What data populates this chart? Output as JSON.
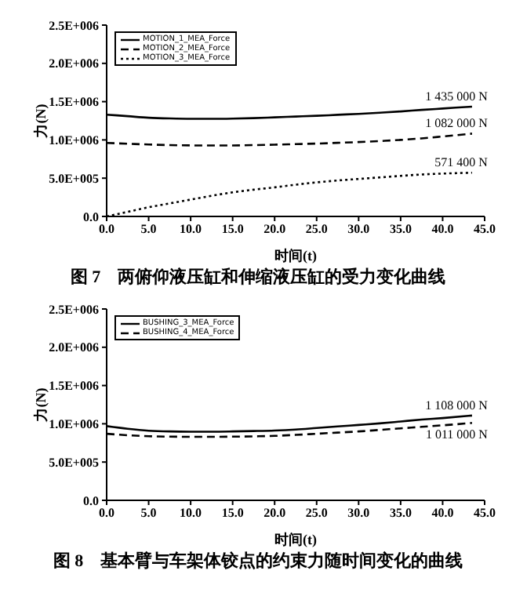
{
  "chart_data": [
    {
      "type": "line",
      "title": "图 7　两俯仰液压缸和伸缩液压缸的受力变化曲线",
      "xlabel": "时间(t)",
      "ylabel": "力(N)",
      "x": [
        0,
        2.5,
        5,
        7.5,
        10,
        12.5,
        15,
        17.5,
        20,
        22.5,
        25,
        27.5,
        30,
        32.5,
        35,
        37.5,
        40,
        43.5
      ],
      "series": [
        {
          "name": "MOTION_1_MEA_Force",
          "color": "#000000",
          "line_style": "solid",
          "values": [
            1330000,
            1310000,
            1290000,
            1280000,
            1275000,
            1275000,
            1278000,
            1285000,
            1295000,
            1305000,
            1315000,
            1328000,
            1340000,
            1355000,
            1372000,
            1392000,
            1410000,
            1435000
          ]
        },
        {
          "name": "MOTION_2_MEA_Force",
          "color": "#000000",
          "line_style": "dashed",
          "values": [
            960000,
            950000,
            940000,
            932000,
            928000,
            927000,
            928000,
            932000,
            938000,
            945000,
            952000,
            962000,
            972000,
            985000,
            1000000,
            1020000,
            1045000,
            1082000
          ]
        },
        {
          "name": "MOTION_3_MEA_Force",
          "color": "#000000",
          "line_style": "dotted",
          "values": [
            0,
            60000,
            120000,
            170000,
            220000,
            270000,
            315000,
            350000,
            380000,
            415000,
            445000,
            470000,
            490000,
            510000,
            530000,
            548000,
            560000,
            571400
          ]
        }
      ],
      "xlim": [
        0,
        45
      ],
      "xticks": [
        {
          "value": 0,
          "label": "0.0"
        },
        {
          "value": 5,
          "label": "5.0"
        },
        {
          "value": 10,
          "label": "10.0"
        },
        {
          "value": 15,
          "label": "15.0"
        },
        {
          "value": 20,
          "label": "20.0"
        },
        {
          "value": 25,
          "label": "25.0"
        },
        {
          "value": 30,
          "label": "30.0"
        },
        {
          "value": 35,
          "label": "35.0"
        },
        {
          "value": 40,
          "label": "40.0"
        },
        {
          "value": 45,
          "label": "45.0"
        }
      ],
      "ylim": [
        0,
        2500000
      ],
      "yticks": [
        {
          "value": 0,
          "label": "0.0"
        },
        {
          "value": 500000,
          "label": "5.0E+005"
        },
        {
          "value": 1000000,
          "label": "1.0E+006"
        },
        {
          "value": 1500000,
          "label": "1.5E+006"
        },
        {
          "value": 2000000,
          "label": "2.0E+006"
        },
        {
          "value": 2500000,
          "label": "2.5E+006"
        }
      ],
      "annotations": [
        "1 435 000 N",
        "1 082 000 N",
        "571 400 N"
      ],
      "grid": false,
      "legend": "top left",
      "marker": "none"
    },
    {
      "type": "line",
      "title": "图 8　基本臂与车架体铰点的约束力随时间变化的曲线",
      "xlabel": "时间(t)",
      "ylabel": "力(N)",
      "x": [
        0,
        2.5,
        5,
        7.5,
        10,
        12.5,
        15,
        17.5,
        20,
        22.5,
        25,
        27.5,
        30,
        32.5,
        35,
        37.5,
        40,
        43.5
      ],
      "series": [
        {
          "name": "BUSHING_3_MEA_Force",
          "color": "#000000",
          "line_style": "solid",
          "values": [
            970000,
            935000,
            910000,
            900000,
            897000,
            897000,
            900000,
            905000,
            912000,
            925000,
            945000,
            965000,
            985000,
            1005000,
            1030000,
            1055000,
            1075000,
            1108000
          ]
        },
        {
          "name": "BUSHING_4_MEA_Force",
          "color": "#000000",
          "line_style": "dashed",
          "values": [
            870000,
            850000,
            838000,
            832000,
            830000,
            830000,
            832000,
            836000,
            842000,
            855000,
            870000,
            885000,
            900000,
            920000,
            940000,
            960000,
            980000,
            1011000
          ]
        }
      ],
      "xlim": [
        0,
        45
      ],
      "xticks": [
        {
          "value": 0,
          "label": "0.0"
        },
        {
          "value": 5,
          "label": "5.0"
        },
        {
          "value": 10,
          "label": "10.0"
        },
        {
          "value": 15,
          "label": "15.0"
        },
        {
          "value": 20,
          "label": "20.0"
        },
        {
          "value": 25,
          "label": "25.0"
        },
        {
          "value": 30,
          "label": "30.0"
        },
        {
          "value": 35,
          "label": "35.0"
        },
        {
          "value": 40,
          "label": "40.0"
        },
        {
          "value": 45,
          "label": "45.0"
        }
      ],
      "ylim": [
        0,
        2500000
      ],
      "yticks": [
        {
          "value": 0,
          "label": "0.0"
        },
        {
          "value": 500000,
          "label": "5.0E+005"
        },
        {
          "value": 1000000,
          "label": "1.0E+006"
        },
        {
          "value": 1500000,
          "label": "1.5E+006"
        },
        {
          "value": 2000000,
          "label": "2.0E+006"
        },
        {
          "value": 2500000,
          "label": "2.5E+006"
        }
      ],
      "annotations": [
        "1 108 000 N",
        "1 011 000 N"
      ],
      "grid": false,
      "legend": "top left",
      "marker": "none"
    }
  ]
}
